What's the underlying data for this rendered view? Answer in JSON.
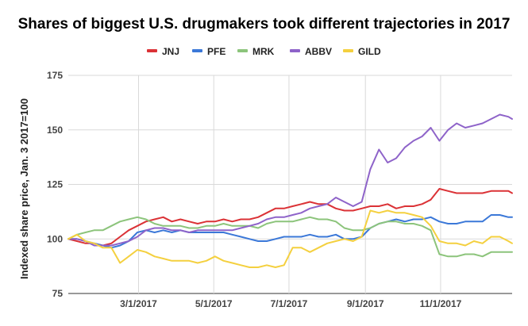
{
  "chart_data": {
    "type": "line",
    "title": "Shares of biggest U.S. drugmakers took different trajectories in 2017",
    "xlabel": "",
    "ylabel": "Indexed share price, Jan. 3 2017=100",
    "ylim": [
      75,
      175
    ],
    "yticks": [
      75,
      100,
      125,
      150,
      175
    ],
    "xlim": [
      "2017-01-03",
      "2017-12-29"
    ],
    "xticks": [
      "3/1/2017",
      "5/1/2017",
      "7/1/2017",
      "9/1/2017",
      "11/1/2017"
    ],
    "grid": true,
    "legend_position": "top",
    "series": [
      {
        "name": "JNJ",
        "color": "#db3236",
        "points": [
          [
            "2017-01-03",
            100
          ],
          [
            "2017-01-10",
            99
          ],
          [
            "2017-01-17",
            98
          ],
          [
            "2017-01-24",
            98
          ],
          [
            "2017-01-31",
            97
          ],
          [
            "2017-02-07",
            98
          ],
          [
            "2017-02-14",
            101
          ],
          [
            "2017-02-21",
            104
          ],
          [
            "2017-02-28",
            106
          ],
          [
            "2017-03-07",
            108
          ],
          [
            "2017-03-14",
            109
          ],
          [
            "2017-03-21",
            110
          ],
          [
            "2017-03-28",
            108
          ],
          [
            "2017-04-04",
            109
          ],
          [
            "2017-04-11",
            108
          ],
          [
            "2017-04-18",
            107
          ],
          [
            "2017-04-25",
            108
          ],
          [
            "2017-05-02",
            108
          ],
          [
            "2017-05-09",
            109
          ],
          [
            "2017-05-16",
            108
          ],
          [
            "2017-05-23",
            109
          ],
          [
            "2017-05-30",
            109
          ],
          [
            "2017-06-06",
            110
          ],
          [
            "2017-06-13",
            112
          ],
          [
            "2017-06-20",
            114
          ],
          [
            "2017-06-27",
            114
          ],
          [
            "2017-07-04",
            115
          ],
          [
            "2017-07-11",
            116
          ],
          [
            "2017-07-18",
            117
          ],
          [
            "2017-07-25",
            116
          ],
          [
            "2017-08-01",
            116
          ],
          [
            "2017-08-08",
            114
          ],
          [
            "2017-08-15",
            113
          ],
          [
            "2017-08-22",
            113
          ],
          [
            "2017-08-29",
            114
          ],
          [
            "2017-09-05",
            115
          ],
          [
            "2017-09-12",
            115
          ],
          [
            "2017-09-19",
            116
          ],
          [
            "2017-09-26",
            114
          ],
          [
            "2017-10-03",
            115
          ],
          [
            "2017-10-10",
            115
          ],
          [
            "2017-10-17",
            116
          ],
          [
            "2017-10-24",
            118
          ],
          [
            "2017-10-31",
            123
          ],
          [
            "2017-11-07",
            122
          ],
          [
            "2017-11-14",
            121
          ],
          [
            "2017-11-21",
            121
          ],
          [
            "2017-11-28",
            121
          ],
          [
            "2017-12-05",
            121
          ],
          [
            "2017-12-12",
            122
          ],
          [
            "2017-12-19",
            122
          ],
          [
            "2017-12-26",
            122
          ],
          [
            "2017-12-29",
            121
          ]
        ]
      },
      {
        "name": "PFE",
        "color": "#3b78d8",
        "points": [
          [
            "2017-01-03",
            100
          ],
          [
            "2017-01-10",
            100
          ],
          [
            "2017-01-17",
            99
          ],
          [
            "2017-01-24",
            98
          ],
          [
            "2017-01-31",
            97
          ],
          [
            "2017-02-07",
            96
          ],
          [
            "2017-02-14",
            97
          ],
          [
            "2017-02-21",
            99
          ],
          [
            "2017-02-28",
            103
          ],
          [
            "2017-03-07",
            104
          ],
          [
            "2017-03-14",
            103
          ],
          [
            "2017-03-21",
            104
          ],
          [
            "2017-03-28",
            103
          ],
          [
            "2017-04-04",
            104
          ],
          [
            "2017-04-11",
            103
          ],
          [
            "2017-04-18",
            103
          ],
          [
            "2017-04-25",
            103
          ],
          [
            "2017-05-02",
            103
          ],
          [
            "2017-05-09",
            103
          ],
          [
            "2017-05-16",
            102
          ],
          [
            "2017-05-23",
            101
          ],
          [
            "2017-05-30",
            100
          ],
          [
            "2017-06-06",
            99
          ],
          [
            "2017-06-13",
            99
          ],
          [
            "2017-06-20",
            100
          ],
          [
            "2017-06-27",
            101
          ],
          [
            "2017-07-04",
            101
          ],
          [
            "2017-07-11",
            101
          ],
          [
            "2017-07-18",
            102
          ],
          [
            "2017-07-25",
            101
          ],
          [
            "2017-08-01",
            101
          ],
          [
            "2017-08-08",
            102
          ],
          [
            "2017-08-15",
            100
          ],
          [
            "2017-08-22",
            100
          ],
          [
            "2017-08-29",
            101
          ],
          [
            "2017-09-05",
            105
          ],
          [
            "2017-09-12",
            107
          ],
          [
            "2017-09-19",
            108
          ],
          [
            "2017-09-26",
            109
          ],
          [
            "2017-10-03",
            108
          ],
          [
            "2017-10-10",
            109
          ],
          [
            "2017-10-17",
            109
          ],
          [
            "2017-10-24",
            110
          ],
          [
            "2017-10-31",
            108
          ],
          [
            "2017-11-07",
            107
          ],
          [
            "2017-11-14",
            107
          ],
          [
            "2017-11-21",
            108
          ],
          [
            "2017-11-28",
            108
          ],
          [
            "2017-12-05",
            108
          ],
          [
            "2017-12-12",
            111
          ],
          [
            "2017-12-19",
            111
          ],
          [
            "2017-12-26",
            110
          ],
          [
            "2017-12-29",
            110
          ]
        ]
      },
      {
        "name": "MRK",
        "color": "#8cc47b",
        "points": [
          [
            "2017-01-03",
            100
          ],
          [
            "2017-01-10",
            102
          ],
          [
            "2017-01-17",
            103
          ],
          [
            "2017-01-24",
            104
          ],
          [
            "2017-01-31",
            104
          ],
          [
            "2017-02-07",
            106
          ],
          [
            "2017-02-14",
            108
          ],
          [
            "2017-02-21",
            109
          ],
          [
            "2017-02-28",
            110
          ],
          [
            "2017-03-07",
            109
          ],
          [
            "2017-03-14",
            107
          ],
          [
            "2017-03-21",
            106
          ],
          [
            "2017-03-28",
            106
          ],
          [
            "2017-04-04",
            106
          ],
          [
            "2017-04-11",
            105
          ],
          [
            "2017-04-18",
            105
          ],
          [
            "2017-04-25",
            106
          ],
          [
            "2017-05-02",
            106
          ],
          [
            "2017-05-09",
            107
          ],
          [
            "2017-05-16",
            106
          ],
          [
            "2017-05-23",
            106
          ],
          [
            "2017-05-30",
            106
          ],
          [
            "2017-06-06",
            105
          ],
          [
            "2017-06-13",
            107
          ],
          [
            "2017-06-20",
            108
          ],
          [
            "2017-06-27",
            108
          ],
          [
            "2017-07-04",
            108
          ],
          [
            "2017-07-11",
            109
          ],
          [
            "2017-07-18",
            110
          ],
          [
            "2017-07-25",
            109
          ],
          [
            "2017-08-01",
            109
          ],
          [
            "2017-08-08",
            108
          ],
          [
            "2017-08-15",
            105
          ],
          [
            "2017-08-22",
            104
          ],
          [
            "2017-08-29",
            104
          ],
          [
            "2017-09-05",
            105
          ],
          [
            "2017-09-12",
            107
          ],
          [
            "2017-09-19",
            108
          ],
          [
            "2017-09-26",
            108
          ],
          [
            "2017-10-03",
            107
          ],
          [
            "2017-10-10",
            107
          ],
          [
            "2017-10-17",
            106
          ],
          [
            "2017-10-24",
            104
          ],
          [
            "2017-10-31",
            93
          ],
          [
            "2017-11-07",
            92
          ],
          [
            "2017-11-14",
            92
          ],
          [
            "2017-11-21",
            93
          ],
          [
            "2017-11-28",
            93
          ],
          [
            "2017-12-05",
            92
          ],
          [
            "2017-12-12",
            94
          ],
          [
            "2017-12-19",
            94
          ],
          [
            "2017-12-26",
            94
          ],
          [
            "2017-12-29",
            94
          ]
        ]
      },
      {
        "name": "ABBV",
        "color": "#8e63c9",
        "points": [
          [
            "2017-01-03",
            100
          ],
          [
            "2017-01-10",
            100
          ],
          [
            "2017-01-17",
            99
          ],
          [
            "2017-01-24",
            97
          ],
          [
            "2017-01-31",
            97
          ],
          [
            "2017-02-07",
            97
          ],
          [
            "2017-02-14",
            98
          ],
          [
            "2017-02-21",
            99
          ],
          [
            "2017-02-28",
            101
          ],
          [
            "2017-03-07",
            104
          ],
          [
            "2017-03-14",
            105
          ],
          [
            "2017-03-21",
            105
          ],
          [
            "2017-03-28",
            104
          ],
          [
            "2017-04-04",
            104
          ],
          [
            "2017-04-11",
            103
          ],
          [
            "2017-04-18",
            104
          ],
          [
            "2017-04-25",
            104
          ],
          [
            "2017-05-02",
            104
          ],
          [
            "2017-05-09",
            104
          ],
          [
            "2017-05-16",
            104
          ],
          [
            "2017-05-23",
            105
          ],
          [
            "2017-05-30",
            106
          ],
          [
            "2017-06-06",
            107
          ],
          [
            "2017-06-13",
            109
          ],
          [
            "2017-06-20",
            110
          ],
          [
            "2017-06-27",
            110
          ],
          [
            "2017-07-04",
            111
          ],
          [
            "2017-07-11",
            112
          ],
          [
            "2017-07-18",
            114
          ],
          [
            "2017-07-25",
            115
          ],
          [
            "2017-08-01",
            116
          ],
          [
            "2017-08-08",
            119
          ],
          [
            "2017-08-15",
            117
          ],
          [
            "2017-08-22",
            115
          ],
          [
            "2017-08-29",
            117
          ],
          [
            "2017-09-05",
            132
          ],
          [
            "2017-09-12",
            141
          ],
          [
            "2017-09-19",
            135
          ],
          [
            "2017-09-26",
            137
          ],
          [
            "2017-10-03",
            142
          ],
          [
            "2017-10-10",
            145
          ],
          [
            "2017-10-17",
            147
          ],
          [
            "2017-10-24",
            151
          ],
          [
            "2017-10-31",
            145
          ],
          [
            "2017-11-07",
            150
          ],
          [
            "2017-11-14",
            153
          ],
          [
            "2017-11-21",
            151
          ],
          [
            "2017-11-28",
            152
          ],
          [
            "2017-12-05",
            153
          ],
          [
            "2017-12-12",
            155
          ],
          [
            "2017-12-19",
            157
          ],
          [
            "2017-12-26",
            156
          ],
          [
            "2017-12-29",
            155
          ]
        ]
      },
      {
        "name": "GILD",
        "color": "#f4d03f",
        "points": [
          [
            "2017-01-03",
            100
          ],
          [
            "2017-01-10",
            102
          ],
          [
            "2017-01-17",
            99
          ],
          [
            "2017-01-24",
            98
          ],
          [
            "2017-01-31",
            96
          ],
          [
            "2017-02-07",
            96
          ],
          [
            "2017-02-14",
            89
          ],
          [
            "2017-02-21",
            92
          ],
          [
            "2017-02-28",
            95
          ],
          [
            "2017-03-07",
            94
          ],
          [
            "2017-03-14",
            92
          ],
          [
            "2017-03-21",
            91
          ],
          [
            "2017-03-28",
            90
          ],
          [
            "2017-04-04",
            90
          ],
          [
            "2017-04-11",
            90
          ],
          [
            "2017-04-18",
            89
          ],
          [
            "2017-04-25",
            90
          ],
          [
            "2017-05-02",
            92
          ],
          [
            "2017-05-09",
            90
          ],
          [
            "2017-05-16",
            89
          ],
          [
            "2017-05-23",
            88
          ],
          [
            "2017-05-30",
            87
          ],
          [
            "2017-06-06",
            87
          ],
          [
            "2017-06-13",
            88
          ],
          [
            "2017-06-20",
            87
          ],
          [
            "2017-06-27",
            88
          ],
          [
            "2017-07-04",
            96
          ],
          [
            "2017-07-11",
            96
          ],
          [
            "2017-07-18",
            94
          ],
          [
            "2017-07-25",
            96
          ],
          [
            "2017-08-01",
            98
          ],
          [
            "2017-08-08",
            99
          ],
          [
            "2017-08-15",
            100
          ],
          [
            "2017-08-22",
            99
          ],
          [
            "2017-08-29",
            101
          ],
          [
            "2017-09-05",
            113
          ],
          [
            "2017-09-12",
            112
          ],
          [
            "2017-09-19",
            113
          ],
          [
            "2017-09-26",
            112
          ],
          [
            "2017-10-03",
            112
          ],
          [
            "2017-10-10",
            111
          ],
          [
            "2017-10-17",
            110
          ],
          [
            "2017-10-24",
            106
          ],
          [
            "2017-10-31",
            99
          ],
          [
            "2017-11-07",
            98
          ],
          [
            "2017-11-14",
            98
          ],
          [
            "2017-11-21",
            97
          ],
          [
            "2017-11-28",
            99
          ],
          [
            "2017-12-05",
            98
          ],
          [
            "2017-12-12",
            101
          ],
          [
            "2017-12-19",
            101
          ],
          [
            "2017-12-26",
            99
          ],
          [
            "2017-12-29",
            98
          ]
        ]
      }
    ]
  }
}
